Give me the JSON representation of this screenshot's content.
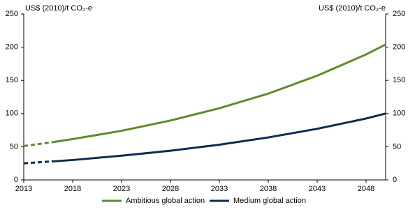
{
  "chart_data": {
    "type": "line",
    "y_label": "US$ (2010)/t CO₂-e",
    "y2_label": "US$ (2010)/t CO₂-e",
    "x": [
      2013,
      2016,
      2018,
      2023,
      2028,
      2033,
      2038,
      2043,
      2048,
      2050
    ],
    "xlim": [
      2013,
      2050
    ],
    "xticks": [
      2013,
      2018,
      2023,
      2028,
      2033,
      2038,
      2043,
      2048
    ],
    "ylim": [
      0,
      250
    ],
    "yticks": [
      0,
      50,
      100,
      150,
      200,
      250
    ],
    "y2lim": [
      0,
      250
    ],
    "y2ticks": [
      0,
      50,
      100,
      150,
      200,
      250
    ],
    "grid": false,
    "legend": "bottom",
    "dash_until": 2016,
    "series": [
      {
        "name": "Ambitious global action",
        "color": "#5b8c2a",
        "values": [
          51,
          57,
          61.5,
          74,
          89.5,
          108,
          130,
          157,
          189,
          204
        ]
      },
      {
        "name": "Medium global action",
        "color": "#0d2b4e",
        "values": [
          25,
          28,
          30,
          36.5,
          44,
          53,
          64,
          77,
          92.5,
          100
        ]
      }
    ]
  }
}
